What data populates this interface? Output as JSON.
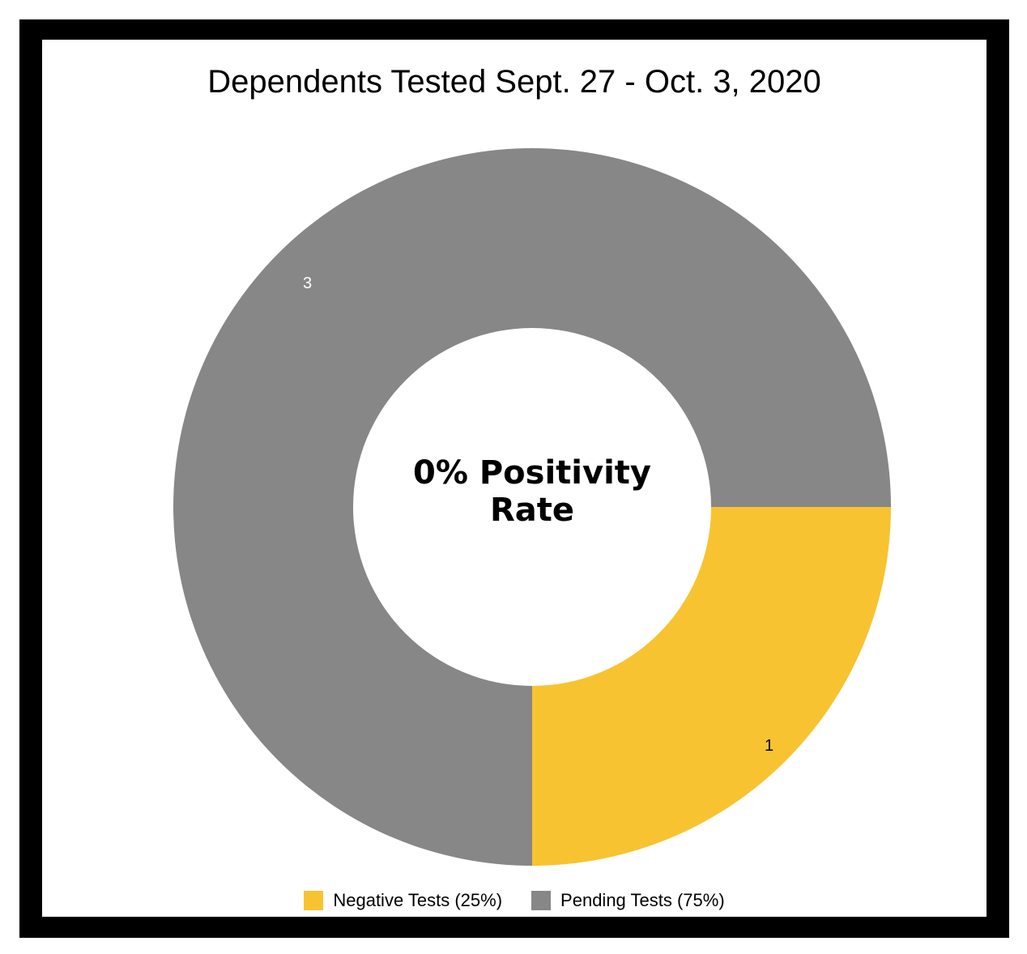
{
  "chart_data": {
    "type": "pie",
    "title": "Dependents Tested Sept. 27 - Oct. 3, 2020",
    "center_label": "0% Positivity Rate",
    "center_label_lines": [
      "0% Positivity",
      "Rate"
    ],
    "donut": true,
    "legend_position": "bottom",
    "slices": [
      {
        "label": "Negative Tests (25%)",
        "value": 1,
        "data_label": "1",
        "color": "#F8C331",
        "label_color": "#000000"
      },
      {
        "label": "Pending Tests (75%)",
        "value": 3,
        "data_label": "3",
        "color": "#878787",
        "label_color": "#ffffff"
      }
    ]
  },
  "colors": {
    "frame": "#000000",
    "background": "#ffffff"
  }
}
